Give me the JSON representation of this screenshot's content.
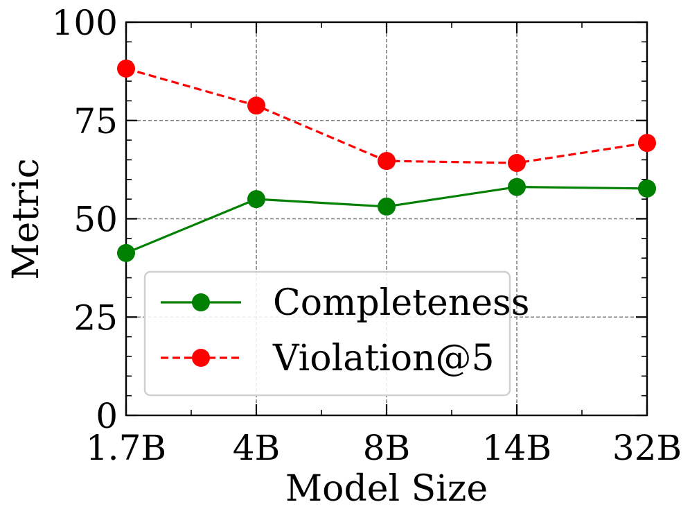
{
  "chart_data": {
    "type": "line",
    "xlabel": "Model Size",
    "ylabel": "Metric",
    "categories": [
      "1.7B",
      "4B",
      "8B",
      "14B",
      "32B"
    ],
    "ylim": [
      0,
      100
    ],
    "yticks": [
      "0",
      "25",
      "50",
      "75",
      "100"
    ],
    "grid": true,
    "legend_position": "lower-left",
    "series": [
      {
        "name": "Completeness",
        "values": [
          41.3,
          55.0,
          53.1,
          58.1,
          57.7
        ],
        "color": "#008000",
        "line_style": "solid",
        "marker": "circle"
      },
      {
        "name": "Violation@5",
        "values": [
          88.2,
          78.8,
          64.7,
          64.2,
          69.3
        ],
        "color": "#ff0000",
        "line_style": "dashed",
        "marker": "circle"
      }
    ]
  }
}
